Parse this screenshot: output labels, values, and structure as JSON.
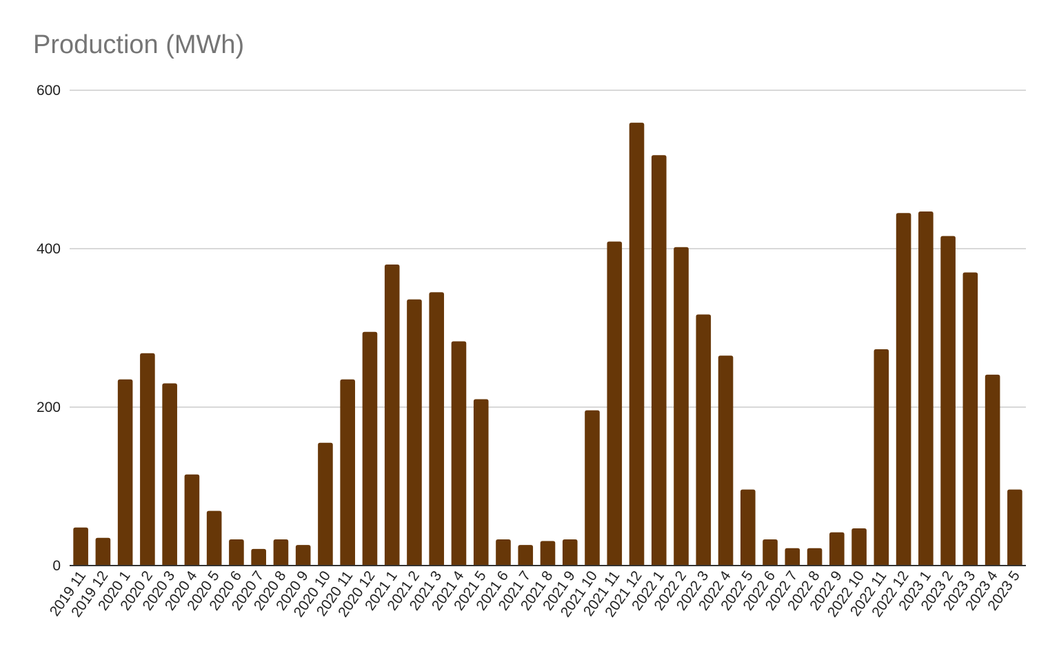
{
  "chart_data": {
    "type": "bar",
    "title": "Production (MWh)",
    "xlabel": "",
    "ylabel": "",
    "ylim": [
      0,
      600
    ],
    "yticks": [
      0,
      200,
      400,
      600
    ],
    "grid": true,
    "bar_color": "#673708",
    "gridline_color": "#cccccc",
    "axis_color": "#333333",
    "title_color": "#757575",
    "categories": [
      "2019 11",
      "2019 12",
      "2020 1",
      "2020 2",
      "2020 3",
      "2020 4",
      "2020 5",
      "2020 6",
      "2020 7",
      "2020 8",
      "2020 9",
      "2020 10",
      "2020 11",
      "2020 12",
      "2021 1",
      "2021 2",
      "2021 3",
      "2021 4",
      "2021 5",
      "2021 6",
      "2021 7",
      "2021 8",
      "2021 9",
      "2021 10",
      "2021 11",
      "2021 12",
      "2022 1",
      "2022 2",
      "2022 3",
      "2022 4",
      "2022 5",
      "2022 6",
      "2022 7",
      "2022 8",
      "2022 9",
      "2022 10",
      "2022 11",
      "2022 12",
      "2023 1",
      "2023 2",
      "2023 3",
      "2023 4",
      "2023 5"
    ],
    "values": [
      48,
      35,
      235,
      268,
      230,
      115,
      69,
      33,
      21,
      33,
      26,
      155,
      235,
      295,
      380,
      336,
      345,
      283,
      210,
      33,
      26,
      31,
      33,
      196,
      409,
      559,
      518,
      402,
      317,
      265,
      96,
      33,
      22,
      22,
      42,
      47,
      273,
      445,
      447,
      416,
      370,
      241,
      96
    ]
  }
}
